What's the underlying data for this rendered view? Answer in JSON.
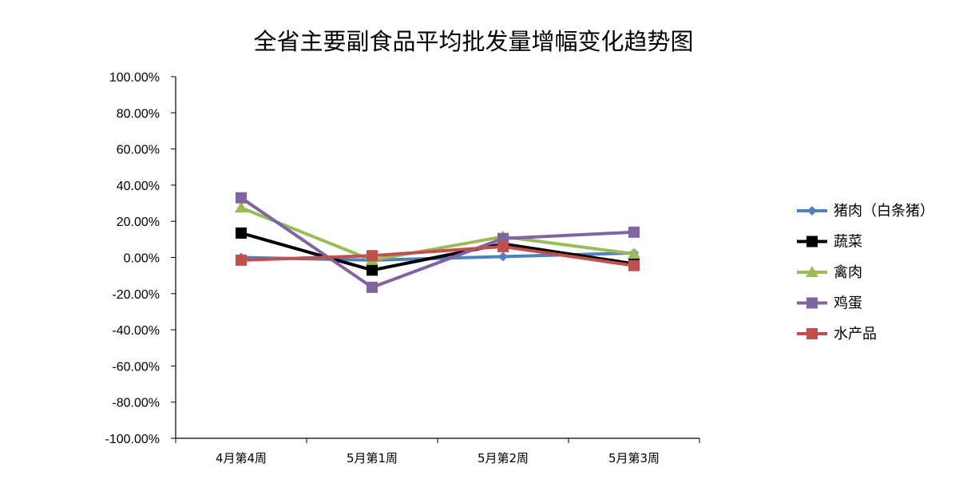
{
  "chart_data": {
    "type": "line",
    "title": "全省主要副食品平均批发量增幅变化趋势图",
    "xlabel": "",
    "ylabel": "",
    "categories": [
      "4月第4周",
      "5月第1周",
      "5月第2周",
      "5月第3周"
    ],
    "ylim": [
      -100,
      100
    ],
    "yticks": [
      100,
      80,
      60,
      40,
      20,
      0,
      -20,
      -40,
      -60,
      -80,
      -100
    ],
    "ytick_labels": [
      "100.00%",
      "80.00%",
      "60.00%",
      "40.00%",
      "20.00%",
      "0.00%",
      "-20.00%",
      "-40.00%",
      "-60.00%",
      "-80.00%",
      "-100.00%"
    ],
    "legend_position": "right",
    "grid": false,
    "series": [
      {
        "name": "猪肉（白条猪）",
        "color": "#4F81BD",
        "marker": "diamond",
        "values": [
          0.0,
          -1.5,
          0.5,
          2.5
        ]
      },
      {
        "name": "蔬菜",
        "color": "#000000",
        "marker": "square",
        "values": [
          13.5,
          -7.0,
          7.5,
          -3.5
        ]
      },
      {
        "name": "禽肉",
        "color": "#9BBB59",
        "marker": "triangle",
        "values": [
          27.5,
          -1.5,
          11.5,
          2.0
        ]
      },
      {
        "name": "鸡蛋",
        "color": "#8064A2",
        "marker": "square",
        "values": [
          33.0,
          -16.5,
          10.5,
          14.0
        ]
      },
      {
        "name": "水产品",
        "color": "#C0504D",
        "marker": "square",
        "values": [
          -1.5,
          1.0,
          6.0,
          -4.5
        ]
      }
    ]
  }
}
